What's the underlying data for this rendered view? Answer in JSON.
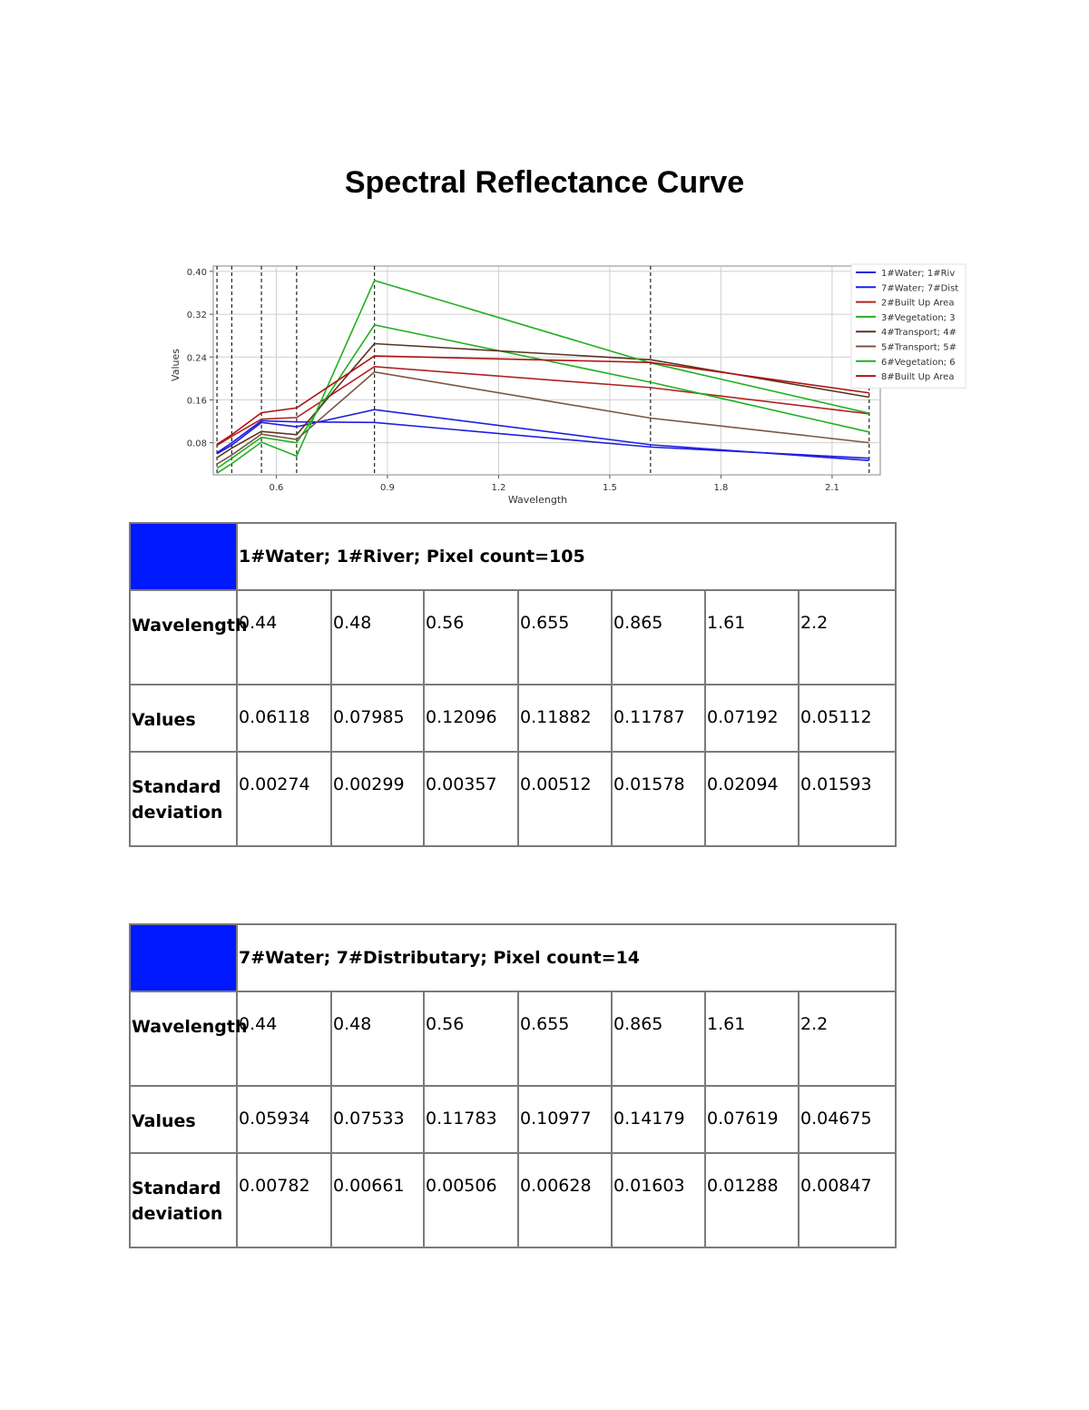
{
  "page": {
    "title": "Spectral Reflectance Curve"
  },
  "chart_data": {
    "type": "line",
    "xlabel": "Wavelength",
    "ylabel": "Values",
    "xlim": [
      0.43,
      2.23
    ],
    "ylim": [
      0.02,
      0.41
    ],
    "xticks": [
      0.6,
      0.9,
      1.2,
      1.5,
      1.8,
      2.1
    ],
    "xtick_labels": [
      "0.6",
      "0.9",
      "1.2",
      "1.5",
      "1.8",
      "2.1"
    ],
    "yticks": [
      0.08,
      0.16,
      0.24,
      0.32,
      0.4
    ],
    "ytick_labels": [
      "0.08",
      "0.16",
      "0.24",
      "0.32",
      "0.40"
    ],
    "vlines_dashed": [
      0.44,
      0.48,
      0.56,
      0.655,
      0.865,
      1.61,
      2.2
    ],
    "grid": true,
    "legend_position": "top-right",
    "x": [
      0.44,
      0.48,
      0.56,
      0.655,
      0.865,
      1.61,
      2.2
    ],
    "series": [
      {
        "name": "1#Water; 1#Riv",
        "color": "#1f1fe0",
        "values": [
          0.06118,
          0.07985,
          0.12096,
          0.11882,
          0.11787,
          0.07192,
          0.05112
        ]
      },
      {
        "name": "7#Water; 7#Dist",
        "color": "#1f1fe0",
        "values": [
          0.05934,
          0.07533,
          0.11783,
          0.10977,
          0.14179,
          0.07619,
          0.04675
        ]
      },
      {
        "name": "2#Built Up Area",
        "color": "#b22222",
        "values": [
          0.075,
          0.092,
          0.124,
          0.127,
          0.222,
          0.183,
          0.134
        ]
      },
      {
        "name": "3#Vegetation; 3",
        "color": "#22b022",
        "values": [
          0.032,
          0.051,
          0.09,
          0.08,
          0.3,
          0.193,
          0.1
        ]
      },
      {
        "name": "4#Transport; 4#",
        "color": "#5a3520",
        "values": [
          0.052,
          0.07,
          0.101,
          0.095,
          0.265,
          0.235,
          0.165
        ]
      },
      {
        "name": "5#Transport; 5#",
        "color": "#7a5544",
        "values": [
          0.04,
          0.057,
          0.096,
          0.086,
          0.212,
          0.126,
          0.08
        ]
      },
      {
        "name": "6#Vegetation; 6",
        "color": "#22b022",
        "values": [
          0.023,
          0.041,
          0.081,
          0.055,
          0.383,
          0.229,
          0.135
        ]
      },
      {
        "name": "8#Built Up Area",
        "color": "#b01010",
        "values": [
          0.077,
          0.095,
          0.136,
          0.145,
          0.242,
          0.23,
          0.173
        ]
      }
    ]
  },
  "tables": [
    {
      "color": "#0019ff",
      "header": "1#Water; 1#River; Pixel count=105",
      "wavelength_label": "Wavelength",
      "values_label": "Values",
      "std_label": "Standard deviation",
      "wavelengths": [
        "0.44",
        "0.48",
        "0.56",
        "0.655",
        "0.865",
        "1.61",
        "2.2"
      ],
      "values": [
        "0.06118",
        "0.07985",
        "0.12096",
        "0.11882",
        "0.11787",
        "0.07192",
        "0.05112"
      ],
      "std": [
        "0.00274",
        "0.00299",
        "0.00357",
        "0.00512",
        "0.01578",
        "0.02094",
        "0.01593"
      ]
    },
    {
      "color": "#0019ff",
      "header": "7#Water; 7#Distributary; Pixel count=14",
      "wavelength_label": "Wavelength",
      "values_label": "Values",
      "std_label": "Standard deviation",
      "wavelengths": [
        "0.44",
        "0.48",
        "0.56",
        "0.655",
        "0.865",
        "1.61",
        "2.2"
      ],
      "values": [
        "0.05934",
        "0.07533",
        "0.11783",
        "0.10977",
        "0.14179",
        "0.07619",
        "0.04675"
      ],
      "std": [
        "0.00782",
        "0.00661",
        "0.00506",
        "0.00628",
        "0.01603",
        "0.01288",
        "0.00847"
      ]
    }
  ]
}
